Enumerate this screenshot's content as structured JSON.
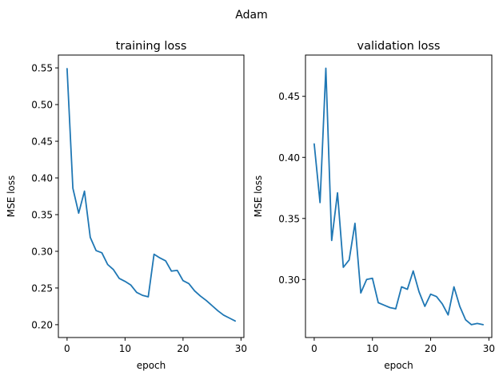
{
  "figure_title": "Adam",
  "colors": {
    "series": "#1f77b4",
    "axes": "#000000",
    "background": "#ffffff"
  },
  "chart_data": [
    {
      "type": "line",
      "title": "training loss",
      "xlabel": "epoch",
      "ylabel": "MSE loss",
      "xlim": [
        -1.5,
        30.5
      ],
      "ylim": [
        0.1825,
        0.5675
      ],
      "xticks": [
        0,
        10,
        20,
        30
      ],
      "yticks": [
        0.2,
        0.25,
        0.3,
        0.35,
        0.4,
        0.45,
        0.5,
        0.55
      ],
      "ytick_labels": [
        "0.20",
        "0.25",
        "0.30",
        "0.35",
        "0.40",
        "0.45",
        "0.50",
        "0.55"
      ],
      "grid": false,
      "legend": "none",
      "series": [
        {
          "x": [
            0,
            1,
            2,
            3,
            4,
            5,
            6,
            7,
            8,
            9,
            10,
            11,
            12,
            13,
            14,
            15,
            16,
            17,
            18,
            19,
            20,
            21,
            22,
            23,
            24,
            25,
            26,
            27,
            28,
            29
          ],
          "y": [
            0.549,
            0.386,
            0.352,
            0.382,
            0.319,
            0.301,
            0.298,
            0.282,
            0.275,
            0.263,
            0.259,
            0.254,
            0.244,
            0.24,
            0.238,
            0.296,
            0.291,
            0.287,
            0.273,
            0.274,
            0.26,
            0.256,
            0.246,
            0.239,
            0.233,
            0.226,
            0.219,
            0.213,
            0.209,
            0.205
          ]
        }
      ]
    },
    {
      "type": "line",
      "title": "validation loss",
      "xlabel": "epoch",
      "ylabel": "MSE loss",
      "xlim": [
        -1.5,
        30.5
      ],
      "ylim": [
        0.2525,
        0.4838
      ],
      "xticks": [
        0,
        10,
        20,
        30
      ],
      "yticks": [
        0.3,
        0.35,
        0.4,
        0.45
      ],
      "ytick_labels": [
        "0.30",
        "0.35",
        "0.40",
        "0.45"
      ],
      "grid": false,
      "legend": "none",
      "series": [
        {
          "x": [
            0,
            1,
            2,
            3,
            4,
            5,
            6,
            7,
            8,
            9,
            10,
            11,
            12,
            13,
            14,
            15,
            16,
            17,
            18,
            19,
            20,
            21,
            22,
            23,
            24,
            25,
            26,
            27,
            28,
            29
          ],
          "y": [
            0.411,
            0.363,
            0.473,
            0.332,
            0.371,
            0.31,
            0.316,
            0.346,
            0.289,
            0.3,
            0.301,
            0.281,
            0.279,
            0.277,
            0.276,
            0.294,
            0.292,
            0.307,
            0.29,
            0.278,
            0.288,
            0.286,
            0.28,
            0.271,
            0.294,
            0.278,
            0.267,
            0.263,
            0.264,
            0.263
          ]
        }
      ]
    }
  ]
}
